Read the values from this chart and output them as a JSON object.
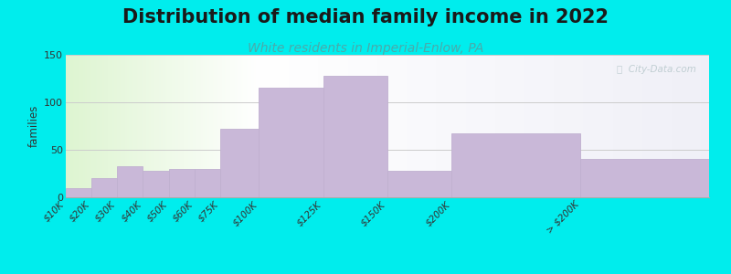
{
  "title": "Distribution of median family income in 2022",
  "subtitle": "White residents in Imperial-Enlow, PA",
  "bin_edges": [
    0,
    10,
    20,
    30,
    40,
    50,
    60,
    75,
    100,
    125,
    150,
    200,
    250
  ],
  "values": [
    10,
    20,
    33,
    28,
    30,
    30,
    72,
    115,
    128,
    28,
    67,
    40
  ],
  "tick_labels": [
    "$10K",
    "$20K",
    "$30K",
    "$40K",
    "$50K",
    "$60K",
    "$75K",
    "$100K",
    "$125K",
    "$150K",
    "$200K",
    "> $200K"
  ],
  "bar_color": "#c9b8d8",
  "bar_edge_color": "#c0b0d0",
  "ylim": [
    0,
    150
  ],
  "yticks": [
    0,
    50,
    100,
    150
  ],
  "ylabel": "families",
  "background_color": "#00eded",
  "title_fontsize": 15,
  "subtitle_fontsize": 10,
  "subtitle_color": "#4aaaaa",
  "grid_color": "#cccccc",
  "watermark_text": "ⓘ  City-Data.com",
  "watermark_color": "#b8c8cc"
}
